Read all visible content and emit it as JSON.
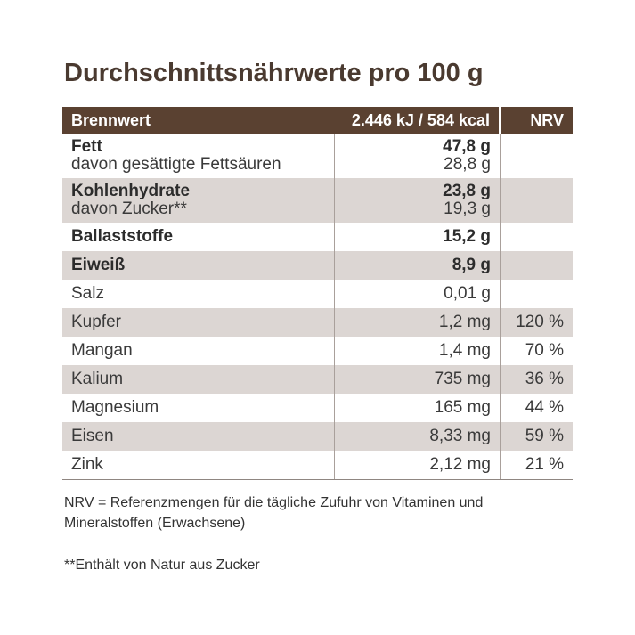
{
  "header": {
    "title": "Durchschnittsnährwerte pro 100 g"
  },
  "table": {
    "columns": [
      "Brennwert",
      "2.446 kJ / 584 kcal",
      "NRV"
    ],
    "rows": [
      {
        "label": "Fett",
        "value": "47,8 g",
        "bold": true,
        "sub_label": "davon gesättigte Fettsäuren",
        "sub_value": "28,8 g"
      },
      {
        "label": "Kohlenhydrate",
        "value": "23,8 g",
        "bold": true,
        "sub_label": "davon Zucker**",
        "sub_value": "19,3 g"
      },
      {
        "label": "Ballaststoffe",
        "value": "15,2 g",
        "bold": true
      },
      {
        "label": "Eiweiß",
        "value": "8,9 g",
        "bold": true
      },
      {
        "label": "Salz",
        "value": "0,01 g"
      },
      {
        "label": "Kupfer",
        "value": "1,2 mg",
        "nrv": "120 %"
      },
      {
        "label": "Mangan",
        "value": "1,4 mg",
        "nrv": "70 %"
      },
      {
        "label": "Kalium",
        "value": "735 mg",
        "nrv": "36 %"
      },
      {
        "label": "Magnesium",
        "value": "165 mg",
        "nrv": "44 %"
      },
      {
        "label": "Eisen",
        "value": "8,33 mg",
        "nrv": "59 %"
      },
      {
        "label": "Zink",
        "value": "2,12 mg",
        "nrv": "21 %"
      }
    ]
  },
  "footnotes": [
    "NRV = Referenzmengen für die tägliche Zufuhr von Vitaminen und Mineralstoffen (Erwachsene)",
    "**Enthält von Natur aus Zucker"
  ]
}
